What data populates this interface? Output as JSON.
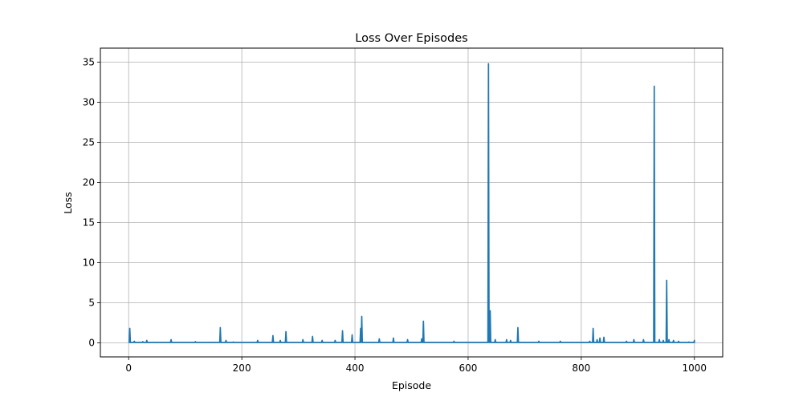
{
  "chart_data": {
    "type": "line",
    "title": "Loss Over Episodes",
    "xlabel": "Episode",
    "ylabel": "Loss",
    "xlim": [
      -50,
      1050
    ],
    "ylim": [
      -1.75,
      36.75
    ],
    "xticks": [
      0,
      200,
      400,
      600,
      800,
      1000
    ],
    "yticks": [
      0,
      5,
      10,
      15,
      20,
      25,
      30,
      35
    ],
    "grid": true,
    "series": [
      {
        "color": "#1f77b4",
        "x_range": [
          0,
          1000
        ],
        "baseline": 0.05,
        "spikes": [
          [
            2,
            1.8
          ],
          [
            10,
            0.2
          ],
          [
            25,
            0.15
          ],
          [
            32,
            0.3
          ],
          [
            75,
            0.4
          ],
          [
            118,
            0.15
          ],
          [
            162,
            1.9
          ],
          [
            172,
            0.3
          ],
          [
            185,
            0.1
          ],
          [
            228,
            0.3
          ],
          [
            255,
            0.9
          ],
          [
            268,
            0.3
          ],
          [
            278,
            1.4
          ],
          [
            308,
            0.4
          ],
          [
            325,
            0.8
          ],
          [
            342,
            0.3
          ],
          [
            365,
            0.3
          ],
          [
            378,
            1.5
          ],
          [
            395,
            1.0
          ],
          [
            410,
            1.8
          ],
          [
            412,
            3.3
          ],
          [
            443,
            0.5
          ],
          [
            468,
            0.6
          ],
          [
            493,
            0.4
          ],
          [
            518,
            0.5
          ],
          [
            521,
            2.7
          ],
          [
            575,
            0.2
          ],
          [
            636,
            34.8
          ],
          [
            639,
            4.0
          ],
          [
            648,
            0.4
          ],
          [
            668,
            0.4
          ],
          [
            675,
            0.3
          ],
          [
            688,
            1.9
          ],
          [
            725,
            0.2
          ],
          [
            763,
            0.2
          ],
          [
            815,
            0.2
          ],
          [
            821,
            1.8
          ],
          [
            828,
            0.4
          ],
          [
            833,
            0.6
          ],
          [
            840,
            0.7
          ],
          [
            880,
            0.2
          ],
          [
            893,
            0.4
          ],
          [
            910,
            0.4
          ],
          [
            929,
            32.0
          ],
          [
            938,
            0.4
          ],
          [
            945,
            0.3
          ],
          [
            951,
            7.8
          ],
          [
            955,
            0.4
          ],
          [
            963,
            0.3
          ],
          [
            972,
            0.2
          ],
          [
            990,
            0.1
          ],
          [
            1000,
            0.3
          ]
        ]
      }
    ]
  }
}
